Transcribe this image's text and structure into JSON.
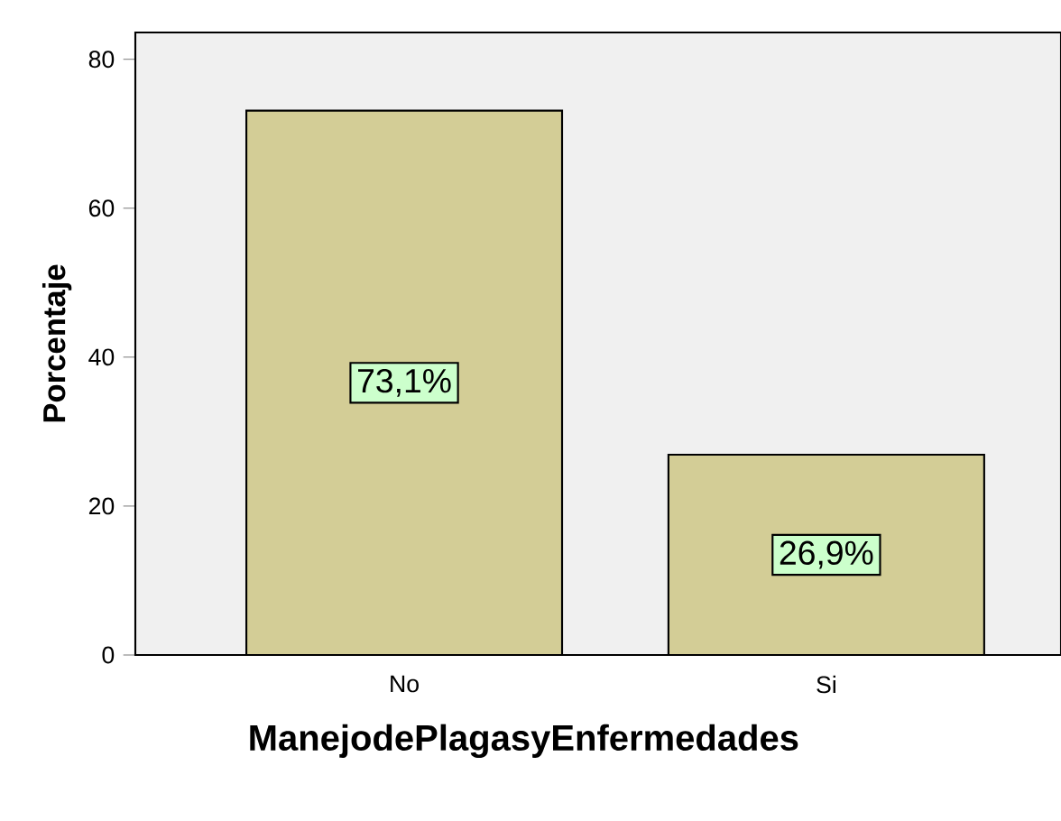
{
  "chart_data": {
    "type": "bar",
    "xlabel": "ManejodePlagasyEnfermedades",
    "ylabel": "Porcentaje",
    "categories": [
      "No",
      "Si"
    ],
    "values": [
      73.1,
      26.9
    ],
    "value_labels": [
      "73,1%",
      "26,9%"
    ],
    "color": "#d3cd96",
    "ylim": [
      0,
      83.6
    ],
    "yticks": [
      0,
      20,
      40,
      60,
      80
    ]
  }
}
